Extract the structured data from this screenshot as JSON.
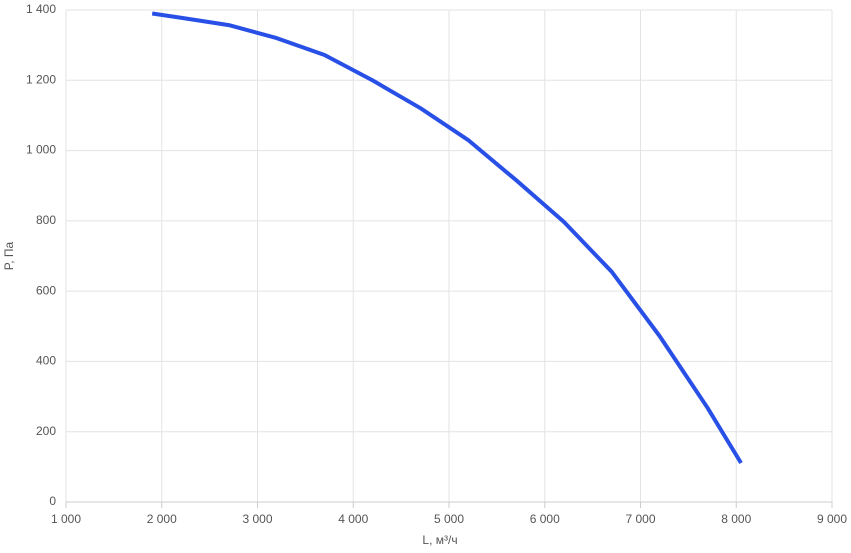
{
  "chart_data": {
    "type": "line",
    "x_label": "L, м³/ч",
    "y_label": "P, Па",
    "x": [
      1900,
      2200,
      2700,
      3200,
      3700,
      4200,
      4700,
      5200,
      5700,
      6200,
      6700,
      7200,
      7700,
      8050
    ],
    "series": [
      {
        "color": "#2850e6",
        "values": [
          1390,
          1378,
          1357,
          1320,
          1272,
          1200,
          1121,
          1030,
          916,
          797,
          655,
          472,
          268,
          111
        ]
      }
    ],
    "xlim": [
      1000,
      9000
    ],
    "xticks": [
      {
        "value": 1000,
        "label": "1 000"
      },
      {
        "value": 2000,
        "label": "2 000"
      },
      {
        "value": 3000,
        "label": "3 000"
      },
      {
        "value": 4000,
        "label": "4 000"
      },
      {
        "value": 5000,
        "label": "5 000"
      },
      {
        "value": 6000,
        "label": "6 000"
      },
      {
        "value": 7000,
        "label": "7 000"
      },
      {
        "value": 8000,
        "label": "8 000"
      },
      {
        "value": 9000,
        "label": "9 000"
      }
    ],
    "ylim": [
      0,
      1400
    ],
    "yticks": [
      0,
      200,
      400,
      600,
      800,
      {
        "value": 1000,
        "label": "1 000"
      },
      {
        "value": 1200,
        "label": "1 200"
      },
      {
        "value": 1400,
        "label": "1 400"
      }
    ],
    "grid": true
  }
}
